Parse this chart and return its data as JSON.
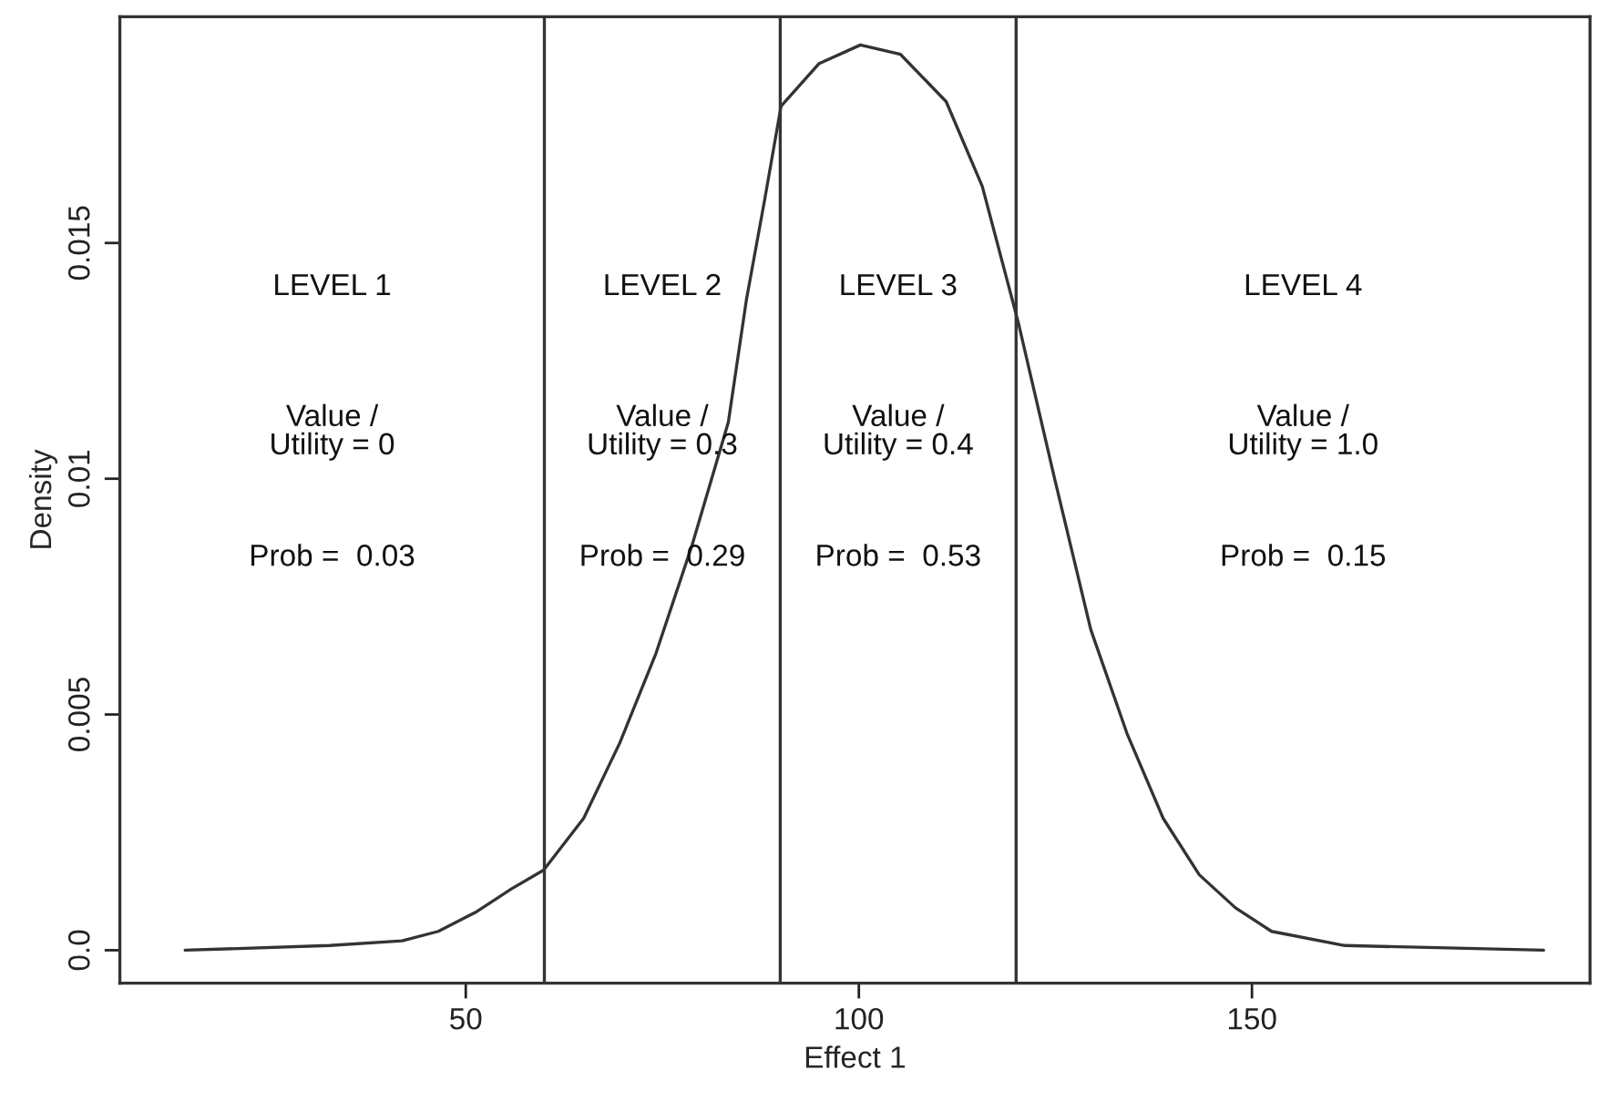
{
  "chart_data": {
    "type": "line",
    "xlabel": "Effect 1",
    "ylabel": "Density",
    "x": [
      14.3,
      32.7,
      41.9,
      46.5,
      51.2,
      55.8,
      59.9,
      65.0,
      69.6,
      74.2,
      78.8,
      83.4,
      85.7,
      88.0,
      90.1,
      94.9,
      100.2,
      105.3,
      111.1,
      115.7,
      120.3,
      124.9,
      129.5,
      134.1,
      138.7,
      143.3,
      147.9,
      152.5,
      161.8,
      187.1
    ],
    "series": [
      {
        "color": "#333333",
        "values": [
          0.0,
          0.0001,
          0.0002,
          0.0004,
          0.0008,
          0.0013,
          0.0017,
          0.0028,
          0.0044,
          0.0063,
          0.0086,
          0.0112,
          0.0138,
          0.0159,
          0.0179,
          0.0188,
          0.0192,
          0.019,
          0.018,
          0.0162,
          0.0133,
          0.01,
          0.0068,
          0.0046,
          0.0028,
          0.0016,
          0.0009,
          0.0004,
          0.0001,
          0.0
        ]
      }
    ],
    "xlim": [
      6,
      193
    ],
    "ylim": [
      -0.0007,
      0.0198
    ],
    "xticks": [
      50,
      100,
      150
    ],
    "yticks": [
      {
        "value": 0,
        "label": "0.0"
      },
      0.005,
      0.01,
      0.015
    ],
    "ref_lines": [
      {
        "axis": "x",
        "value": 60,
        "color": "#333333"
      },
      {
        "axis": "x",
        "value": 90,
        "color": "#333333"
      },
      {
        "axis": "x",
        "value": 120,
        "color": "#333333"
      }
    ],
    "annotations": [
      "LEVEL 1",
      "Value /\nUtility = 0",
      "Prob =  0.03",
      "LEVEL 2",
      "Value /\nUtility = 0.3",
      "Prob =  0.29",
      "LEVEL 3",
      "Value /\nUtility = 0.4",
      "Prob =  0.53",
      "LEVEL 4",
      "Value /\nUtility = 1.0",
      "Prob =  0.15"
    ],
    "grid": false,
    "legend": false,
    "marker": "none",
    "line_style": "solid"
  }
}
